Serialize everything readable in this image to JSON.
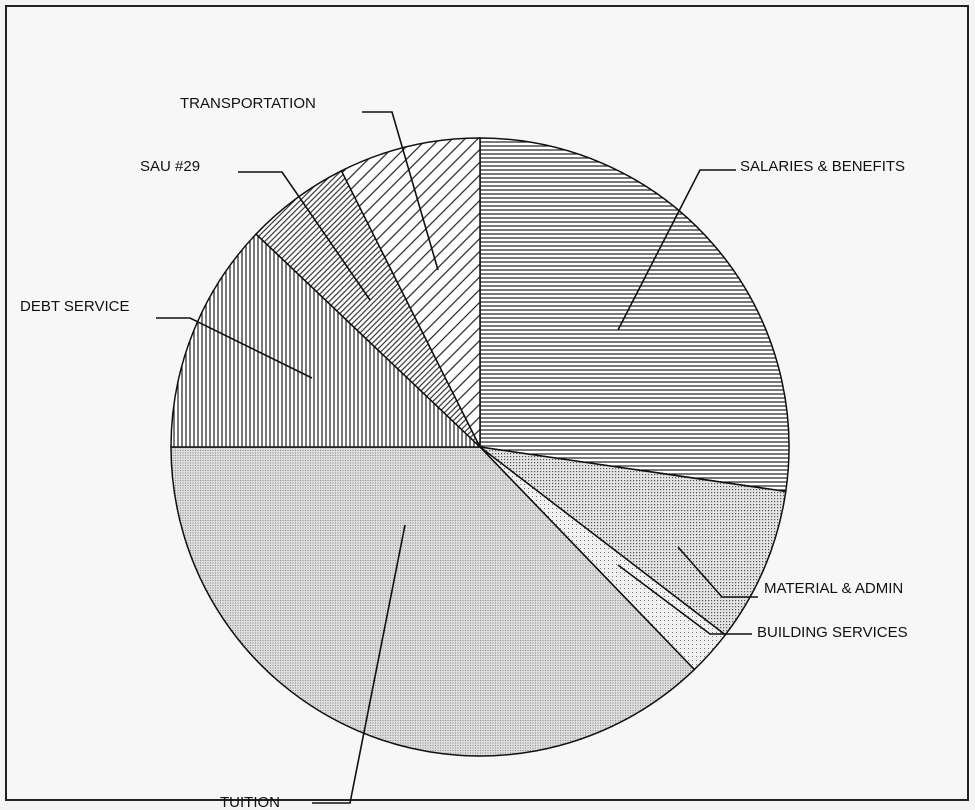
{
  "chart_data": {
    "type": "pie",
    "categories": [
      "SALARIES & BENEFITS",
      "MATERIAL & ADMIN",
      "BUILDING SERVICES",
      "TUITION",
      "DEBT SERVICE",
      "SAU #29",
      "TRANSPORTATION"
    ],
    "values": [
      27.3,
      8.1,
      2.4,
      37.2,
      12.1,
      5.5,
      7.4
    ]
  }
}
